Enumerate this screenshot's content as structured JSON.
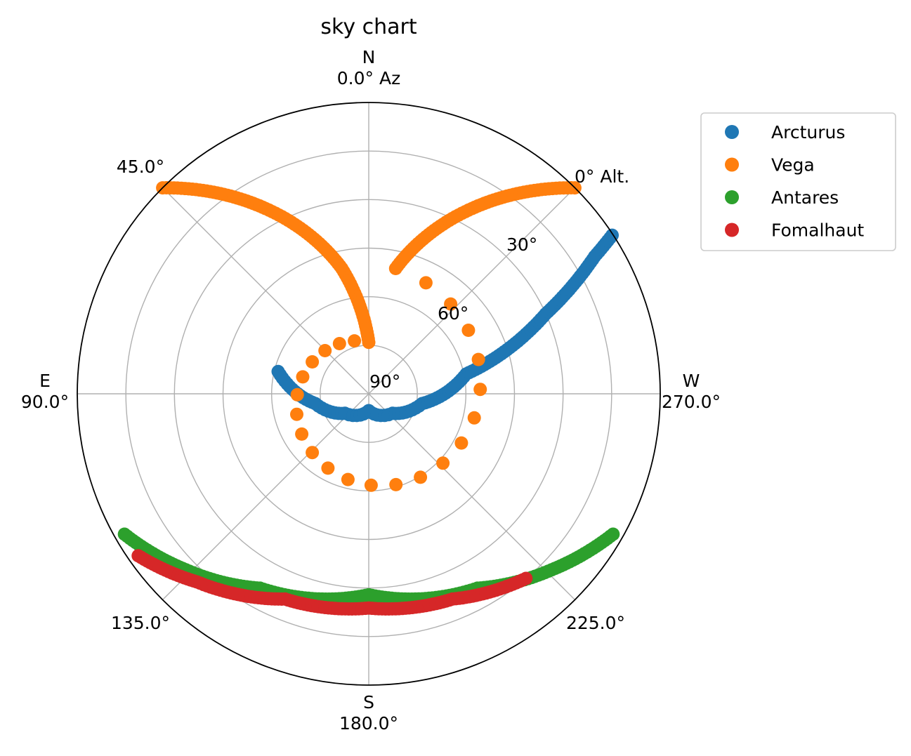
{
  "chart_data": {
    "type": "scatter",
    "projection": "polar",
    "title": "sky chart",
    "theta_zero": "N",
    "theta_direction": "counterclockwise",
    "r_axis": "altitude",
    "r_range": [
      90,
      0
    ],
    "r_ticks": [
      {
        "value": 0,
        "label": "0° Alt."
      },
      {
        "value": 30,
        "label": "30°"
      },
      {
        "value": 60,
        "label": "60°"
      },
      {
        "value": 90,
        "label": "90°"
      }
    ],
    "theta_ticks": [
      {
        "value": 0,
        "label": "N\n0.0° Az"
      },
      {
        "value": 45,
        "label": "45.0°"
      },
      {
        "value": 90,
        "label": "E\n90.0°"
      },
      {
        "value": 135,
        "label": "135.0°"
      },
      {
        "value": 180,
        "label": "S\n180.0°"
      },
      {
        "value": 225,
        "label": "225.0°"
      },
      {
        "value": 270,
        "label": "W\n270.0°"
      },
      {
        "value": 315,
        "label": ""
      }
    ],
    "grid": true,
    "legend_position": "upper-right-outside",
    "series": [
      {
        "name": "Arcturus",
        "color": "#1f77b4",
        "points": [
          [
            76.2,
            61.2
          ],
          [
            100.3,
            73.2
          ],
          [
            129.4,
            80.5
          ],
          [
            180,
            84.8
          ],
          [
            230.6,
            80.5
          ],
          [
            259.7,
            73.2
          ],
          [
            281.5,
            59.3
          ],
          [
            294.3,
            30.1
          ],
          [
            301.3,
            8.4
          ],
          [
            303.1,
            0.3
          ]
        ]
      },
      {
        "name": "Vega",
        "color": "#ff7f0e",
        "points": [
          [
            45,
            0
          ],
          [
            29.1,
            24.5
          ],
          [
            12.1,
            50.4
          ],
          [
            0,
            74.1
          ],
          [
            347.9,
            50.4
          ],
          [
            330.9,
            24.5
          ],
          [
            315,
            0
          ]
        ]
      },
      {
        "name": "Antares",
        "color": "#2ca02c",
        "points": [
          [
            119.9,
            3.0
          ],
          [
            133.9,
            11.6
          ],
          [
            150.8,
            21.2
          ],
          [
            180,
            27.9
          ],
          [
            209.2,
            21.2
          ],
          [
            226.1,
            11.6
          ],
          [
            240.1,
            3.0
          ]
        ]
      },
      {
        "name": "Fomalhaut",
        "color": "#d62728",
        "points": [
          [
            125.1,
            3.0
          ],
          [
            137.6,
            11.3
          ],
          [
            157.8,
            21.5
          ],
          [
            180,
            23.8
          ],
          [
            202.2,
            21.5
          ],
          [
            220.4,
            15.1
          ]
        ]
      }
    ]
  }
}
